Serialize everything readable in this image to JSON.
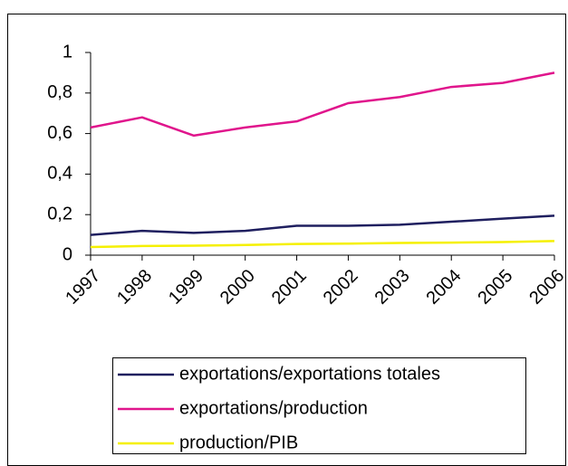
{
  "chart_data": {
    "type": "line",
    "categories": [
      "1997",
      "1998",
      "1999",
      "2000",
      "2001",
      "2002",
      "2003",
      "2004",
      "2005",
      "2006"
    ],
    "series": [
      {
        "name": "exportations/exportations totales",
        "color": "#1f1f5f",
        "values": [
          0.1,
          0.12,
          0.11,
          0.12,
          0.145,
          0.145,
          0.15,
          0.165,
          0.18,
          0.195
        ]
      },
      {
        "name": "exportations/production",
        "color": "#e0158c",
        "values": [
          0.63,
          0.68,
          0.59,
          0.63,
          0.66,
          0.75,
          0.78,
          0.83,
          0.85,
          0.9
        ]
      },
      {
        "name": "production/PIB",
        "color": "#f5f000",
        "values": [
          0.04,
          0.045,
          0.047,
          0.05,
          0.055,
          0.057,
          0.06,
          0.062,
          0.065,
          0.07
        ]
      }
    ],
    "ylim": [
      0,
      1
    ],
    "yticks": [
      0,
      {
        "value": 0.2,
        "label": "0,2"
      },
      {
        "value": 0.4,
        "label": "0,4"
      },
      {
        "value": 0.6,
        "label": "0,6"
      },
      {
        "value": 0.8,
        "label": "0,8"
      },
      1
    ],
    "grid": false
  }
}
